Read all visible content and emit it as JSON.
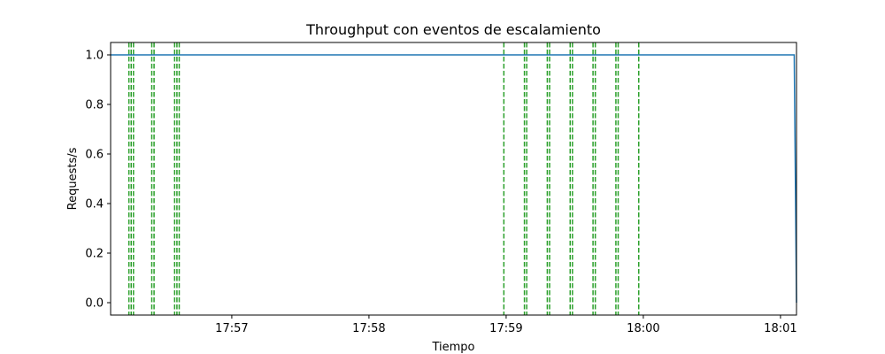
{
  "chart_data": {
    "type": "line",
    "title": "Throughput con eventos de escalamiento",
    "xlabel": "Tiempo",
    "ylabel": "Requests/s",
    "x_range": [
      "17:56:07",
      "18:01:07"
    ],
    "ylim": [
      -0.05,
      1.05
    ],
    "y_ticks": [
      0.0,
      0.2,
      0.4,
      0.6,
      0.8,
      1.0
    ],
    "x_ticks": [
      "17:57",
      "17:58",
      "17:59",
      "18:00",
      "18:01"
    ],
    "grid": false,
    "series": [
      {
        "color": "#1f77b4",
        "style": "solid",
        "points": [
          {
            "x": "17:56:07",
            "y": 1.0
          },
          {
            "x": "18:01:06",
            "y": 1.0
          },
          {
            "x": "18:01:07",
            "y": 0.0
          }
        ]
      }
    ],
    "scaling_events": {
      "color": "#2ca02c",
      "style": "dashed",
      "times": [
        "17:56:15",
        "17:56:16",
        "17:56:17",
        "17:56:25",
        "17:56:26",
        "17:56:35",
        "17:56:36",
        "17:56:37",
        "17:58:59",
        "17:59:08",
        "17:59:09",
        "17:59:18",
        "17:59:19",
        "17:59:28",
        "17:59:29",
        "17:59:38",
        "17:59:39",
        "17:59:48",
        "17:59:49",
        "17:59:58"
      ]
    }
  }
}
